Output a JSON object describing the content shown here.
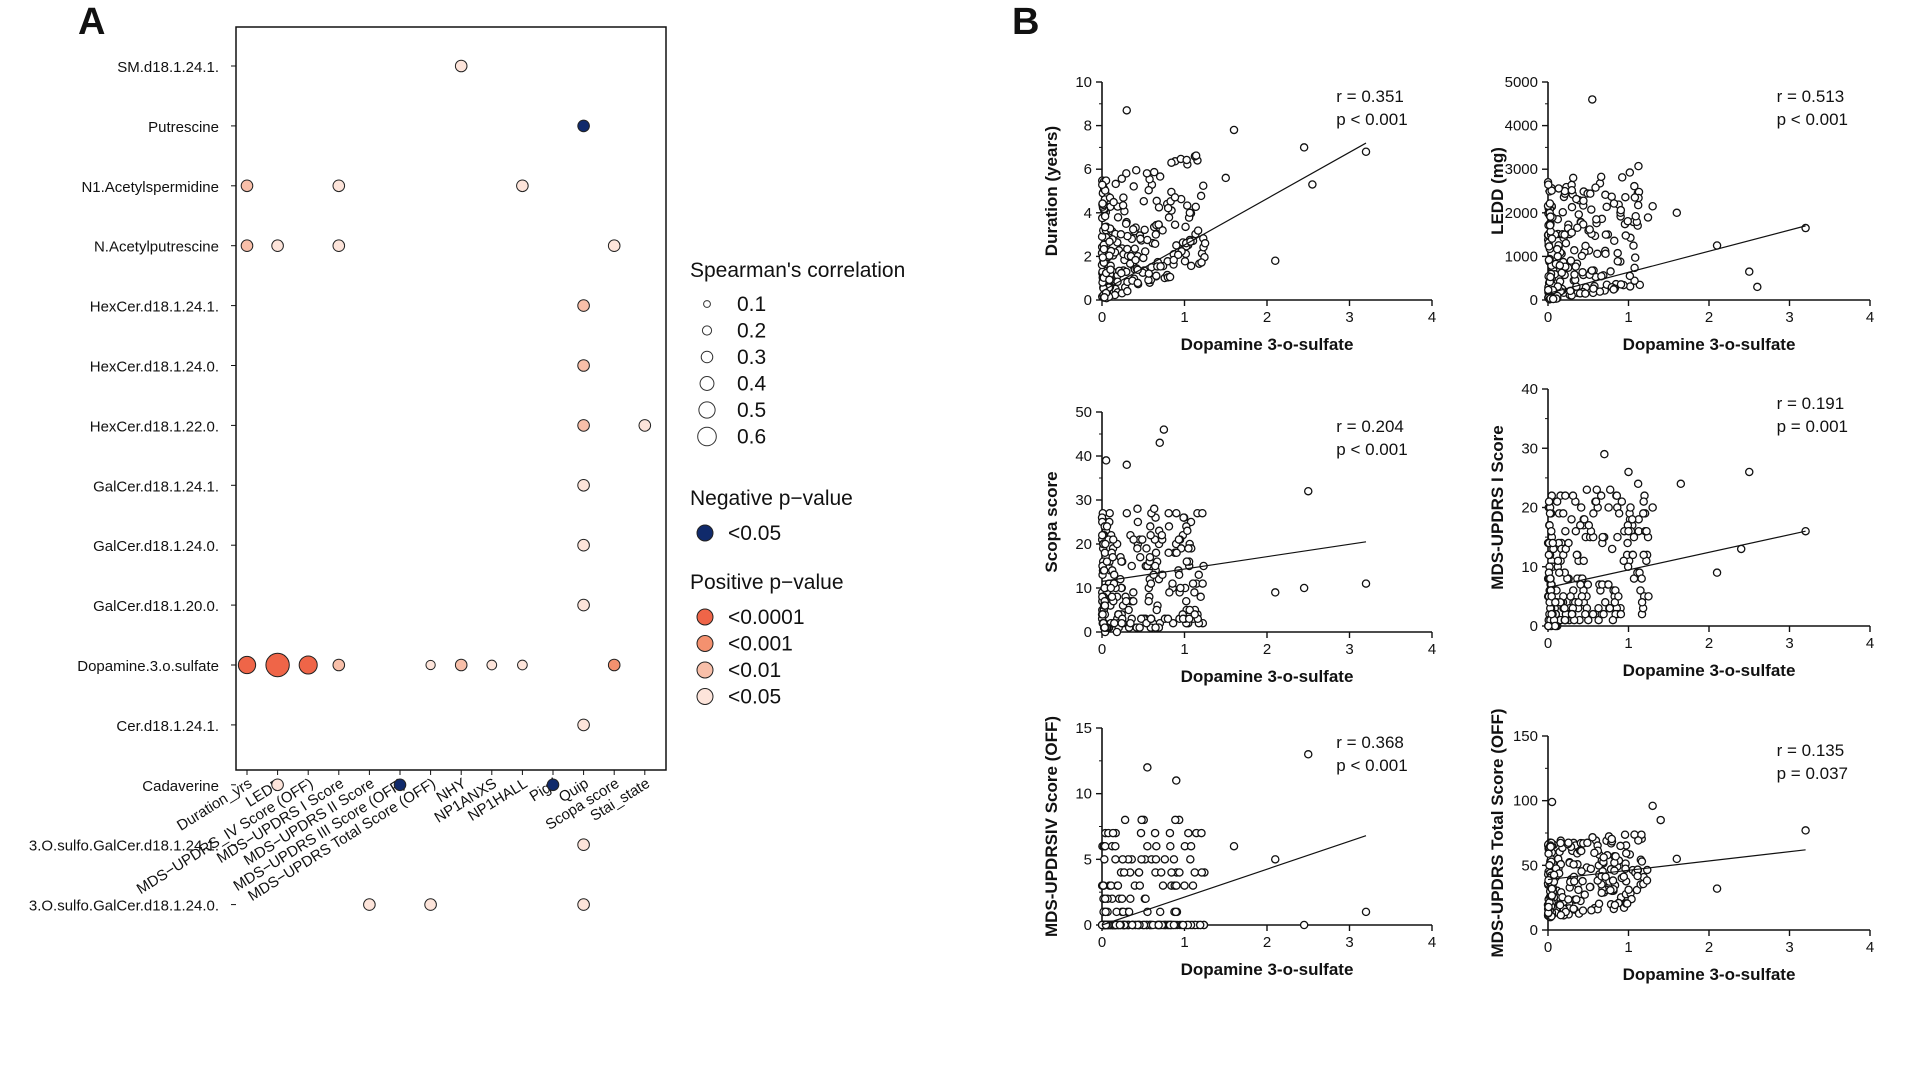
{
  "panel_labels": {
    "a": "A",
    "b": "B"
  },
  "chart_data": [
    {
      "type": "scatter",
      "subtype": "bubble-matrix",
      "title": "",
      "rows": [
        "SM.d18.1.24.1.",
        "Putrescine",
        "N1.Acetylspermidine",
        "N.Acetylputrescine",
        "HexCer.d18.1.24.1.",
        "HexCer.d18.1.24.0.",
        "HexCer.d18.1.22.0.",
        "GalCer.d18.1.24.1.",
        "GalCer.d18.1.24.0.",
        "GalCer.d18.1.20.0.",
        "Dopamine.3.o.sulfate",
        "Cer.d18.1.24.1.",
        "Cadaverine",
        "3.O.sulfo.GalCer.d18.1.24.1.",
        "3.O.sulfo.GalCer.d18.1.24.0."
      ],
      "columns": [
        "Duration_yrs",
        "LEDD",
        "MDS−UPDRS_IV Score (OFF)",
        "MDS−UPDRS I Score",
        "MDS−UPDRS II Score",
        "MDS−UPDRS III Score (OFF)",
        "MDS−UPDRS Total Score (OFF)",
        "NHY",
        "NP1ANXS",
        "NP1HALL",
        "Pigd",
        "Quip",
        "Scopa score",
        "Stai_state"
      ],
      "cells": [
        {
          "row": 0,
          "col": 7,
          "r": 0.2,
          "sign": "positive",
          "p": "<0.05"
        },
        {
          "row": 1,
          "col": 11,
          "r": 0.2,
          "sign": "negative",
          "p": "<0.05"
        },
        {
          "row": 2,
          "col": 0,
          "r": 0.2,
          "sign": "positive",
          "p": "<0.01"
        },
        {
          "row": 2,
          "col": 3,
          "r": 0.2,
          "sign": "positive",
          "p": "<0.05"
        },
        {
          "row": 2,
          "col": 9,
          "r": 0.2,
          "sign": "positive",
          "p": "<0.05"
        },
        {
          "row": 3,
          "col": 0,
          "r": 0.2,
          "sign": "positive",
          "p": "<0.01"
        },
        {
          "row": 3,
          "col": 1,
          "r": 0.2,
          "sign": "positive",
          "p": "<0.05"
        },
        {
          "row": 3,
          "col": 3,
          "r": 0.2,
          "sign": "positive",
          "p": "<0.05"
        },
        {
          "row": 3,
          "col": 12,
          "r": 0.2,
          "sign": "positive",
          "p": "<0.05"
        },
        {
          "row": 4,
          "col": 11,
          "r": 0.2,
          "sign": "positive",
          "p": "<0.01"
        },
        {
          "row": 5,
          "col": 11,
          "r": 0.2,
          "sign": "positive",
          "p": "<0.01"
        },
        {
          "row": 6,
          "col": 11,
          "r": 0.2,
          "sign": "positive",
          "p": "<0.01"
        },
        {
          "row": 6,
          "col": 13,
          "r": 0.2,
          "sign": "positive",
          "p": "<0.05"
        },
        {
          "row": 7,
          "col": 11,
          "r": 0.2,
          "sign": "positive",
          "p": "<0.05"
        },
        {
          "row": 8,
          "col": 11,
          "r": 0.2,
          "sign": "positive",
          "p": "<0.05"
        },
        {
          "row": 9,
          "col": 11,
          "r": 0.2,
          "sign": "positive",
          "p": "<0.05"
        },
        {
          "row": 10,
          "col": 0,
          "r": 0.35,
          "sign": "positive",
          "p": "<0.0001"
        },
        {
          "row": 10,
          "col": 1,
          "r": 0.51,
          "sign": "positive",
          "p": "<0.0001"
        },
        {
          "row": 10,
          "col": 2,
          "r": 0.37,
          "sign": "positive",
          "p": "<0.0001"
        },
        {
          "row": 10,
          "col": 3,
          "r": 0.2,
          "sign": "positive",
          "p": "<0.01"
        },
        {
          "row": 10,
          "col": 6,
          "r": 0.14,
          "sign": "positive",
          "p": "<0.05"
        },
        {
          "row": 10,
          "col": 7,
          "r": 0.2,
          "sign": "positive",
          "p": "<0.01"
        },
        {
          "row": 10,
          "col": 8,
          "r": 0.15,
          "sign": "positive",
          "p": "<0.05"
        },
        {
          "row": 10,
          "col": 9,
          "r": 0.15,
          "sign": "positive",
          "p": "<0.05"
        },
        {
          "row": 10,
          "col": 12,
          "r": 0.2,
          "sign": "positive",
          "p": "<0.001"
        },
        {
          "row": 11,
          "col": 11,
          "r": 0.2,
          "sign": "positive",
          "p": "<0.05"
        },
        {
          "row": 12,
          "col": 1,
          "r": 0.2,
          "sign": "positive",
          "p": "<0.05"
        },
        {
          "row": 12,
          "col": 5,
          "r": 0.2,
          "sign": "negative",
          "p": "<0.05"
        },
        {
          "row": 12,
          "col": 10,
          "r": 0.2,
          "sign": "negative",
          "p": "<0.05"
        },
        {
          "row": 13,
          "col": 11,
          "r": 0.2,
          "sign": "positive",
          "p": "<0.05"
        },
        {
          "row": 14,
          "col": 4,
          "r": 0.2,
          "sign": "positive",
          "p": "<0.05"
        },
        {
          "row": 14,
          "col": 6,
          "r": 0.2,
          "sign": "positive",
          "p": "<0.05"
        },
        {
          "row": 14,
          "col": 11,
          "r": 0.2,
          "sign": "positive",
          "p": "<0.05"
        }
      ],
      "legend": {
        "size_title": "Spearman's correlation",
        "size_values": [
          "0.1",
          "0.2",
          "0.3",
          "0.4",
          "0.5",
          "0.6"
        ],
        "neg_title": "Negative p−value",
        "neg_items": [
          "<0.05"
        ],
        "pos_title": "Positive p−value",
        "pos_items": [
          "<0.0001",
          "<0.001",
          "<0.01",
          "<0.05"
        ]
      },
      "colors": {
        "negative": "#102a6b",
        "<0.0001": "#ef6548",
        "<0.001": "#f4916f",
        "<0.01": "#f8bfa9",
        "<0.05": "#fde4da"
      }
    },
    {
      "type": "scatter",
      "xlabel": "Dopamine 3-o-sulfate",
      "ylabel": "Duration (years)",
      "xlim": [
        0,
        4
      ],
      "xticks": [
        "0",
        "1",
        "2",
        "3",
        "4"
      ],
      "ylim": [
        0,
        10
      ],
      "yticks": [
        "0",
        "2",
        "4",
        "6",
        "8",
        "10"
      ],
      "r_text": "r  = 0.351",
      "p_text": "p < 0.001",
      "fit": [
        [
          0,
          0.4
        ],
        [
          3.2,
          7.2
        ]
      ],
      "ymode": "cont",
      "seed": 11,
      "extra_points": [
        [
          0.3,
          8.7
        ],
        [
          2.45,
          7.0
        ],
        [
          2.55,
          5.3
        ],
        [
          3.2,
          6.8
        ],
        [
          2.1,
          1.8
        ],
        [
          1.6,
          7.8
        ],
        [
          1.5,
          5.6
        ]
      ]
    },
    {
      "type": "scatter",
      "xlabel": "Dopamine 3-o-sulfate",
      "ylabel": "LEDD (mg)",
      "xlim": [
        0,
        4
      ],
      "xticks": [
        "0",
        "1",
        "2",
        "3",
        "4"
      ],
      "ylim": [
        0,
        5000
      ],
      "yticks": [
        "0",
        "1000",
        "2000",
        "3000",
        "4000",
        "5000"
      ],
      "r_text": "r  = 0.513",
      "p_text": "p < 0.001",
      "fit": [
        [
          0,
          150
        ],
        [
          3.2,
          1700
        ]
      ],
      "ymode": "cont",
      "seed": 23,
      "extra_points": [
        [
          0.55,
          4600
        ],
        [
          3.2,
          1650
        ],
        [
          2.5,
          650
        ],
        [
          2.6,
          300
        ],
        [
          2.1,
          1250
        ],
        [
          1.3,
          2150
        ],
        [
          1.6,
          2000
        ],
        [
          0.6,
          1850
        ]
      ]
    },
    {
      "type": "scatter",
      "xlabel": "Dopamine 3-o-sulfate",
      "ylabel": "Scopa score",
      "xlim": [
        0,
        4
      ],
      "xticks": [
        "0",
        "1",
        "2",
        "3",
        "4"
      ],
      "ylim": [
        0,
        50
      ],
      "yticks": [
        "0",
        "10",
        "20",
        "30",
        "40",
        "50"
      ],
      "r_text": "r  = 0.204",
      "p_text": "p < 0.001",
      "fit": [
        [
          0,
          11.5
        ],
        [
          3.2,
          20.5
        ]
      ],
      "ymode": "int",
      "seed": 37,
      "extra_points": [
        [
          0.75,
          46
        ],
        [
          0.7,
          43
        ],
        [
          0.3,
          38
        ],
        [
          2.5,
          32
        ],
        [
          3.2,
          11
        ],
        [
          2.1,
          9
        ],
        [
          2.45,
          10
        ],
        [
          0.05,
          39
        ]
      ]
    },
    {
      "type": "scatter",
      "xlabel": "Dopamine 3-o-sulfate",
      "ylabel": "MDS-UPDRS I Score",
      "xlim": [
        0,
        4
      ],
      "xticks": [
        "0",
        "1",
        "2",
        "3",
        "4"
      ],
      "ylim": [
        0,
        40
      ],
      "yticks": [
        "0",
        "10",
        "20",
        "30",
        "40"
      ],
      "r_text": "r  = 0.191",
      "p_text": "p = 0.001",
      "fit": [
        [
          0,
          6.5
        ],
        [
          3.2,
          16.0
        ]
      ],
      "ymode": "int",
      "seed": 41,
      "extra_points": [
        [
          0.7,
          29
        ],
        [
          1.0,
          26
        ],
        [
          2.5,
          26
        ],
        [
          1.65,
          24
        ],
        [
          3.2,
          16
        ],
        [
          2.4,
          13
        ],
        [
          2.1,
          9
        ],
        [
          1.3,
          20
        ]
      ]
    },
    {
      "type": "scatter",
      "xlabel": "Dopamine 3-o-sulfate",
      "ylabel": "MDS-UPDRSIV Score (OFF)",
      "xlim": [
        0,
        4
      ],
      "xticks": [
        "0",
        "1",
        "2",
        "3",
        "4"
      ],
      "ylim": [
        0,
        15
      ],
      "yticks": [
        "0",
        "5",
        "10",
        "15"
      ],
      "r_text": "r  = 0.368",
      "p_text": "p < 0.001",
      "fit": [
        [
          0,
          0.0
        ],
        [
          3.2,
          6.8
        ]
      ],
      "ymode": "updrs4",
      "seed": 53,
      "extra_points": [
        [
          2.5,
          13
        ],
        [
          0.55,
          12
        ],
        [
          0.9,
          11
        ],
        [
          3.2,
          1
        ],
        [
          2.1,
          5
        ],
        [
          2.45,
          0
        ],
        [
          1.6,
          6
        ]
      ]
    },
    {
      "type": "scatter",
      "xlabel": "Dopamine 3-o-sulfate",
      "ylabel": "MDS-UPDRS Total Score (OFF)",
      "xlim": [
        0,
        4
      ],
      "xticks": [
        "0",
        "1",
        "2",
        "3",
        "4"
      ],
      "ylim": [
        0,
        150
      ],
      "yticks": [
        "0",
        "50",
        "100",
        "150"
      ],
      "r_text": "r  = 0.135",
      "p_text": "p = 0.037",
      "fit": [
        [
          0,
          39
        ],
        [
          3.2,
          62
        ]
      ],
      "ymode": "total",
      "seed": 67,
      "extra_points": [
        [
          0.05,
          99
        ],
        [
          1.3,
          96
        ],
        [
          1.4,
          85
        ],
        [
          3.2,
          77
        ],
        [
          2.1,
          32
        ],
        [
          1.6,
          55
        ],
        [
          0.9,
          65
        ]
      ]
    }
  ]
}
